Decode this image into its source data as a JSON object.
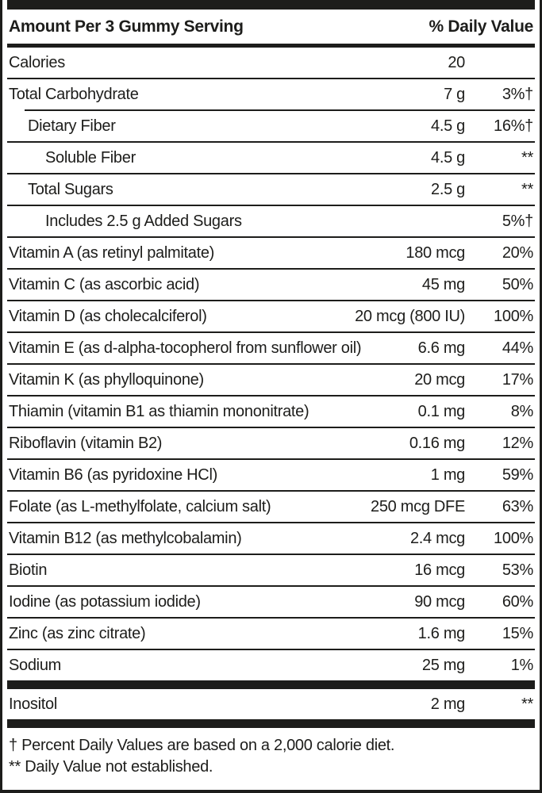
{
  "header": {
    "left": "Amount Per 3 Gummy Serving",
    "right": "% Daily Value"
  },
  "table": {
    "rows": [
      {
        "label": "Calories",
        "amount": "20",
        "pct": "",
        "indent": 0,
        "divider": "line"
      },
      {
        "label": "Total Carbohydrate",
        "amount": "7 g",
        "pct": "3%†",
        "indent": 0,
        "divider": "line-indent"
      },
      {
        "label": "Dietary Fiber",
        "amount": "4.5 g",
        "pct": "16%†",
        "indent": 1,
        "divider": "line"
      },
      {
        "label": "Soluble Fiber",
        "amount": "4.5 g",
        "pct": "**",
        "indent": 2,
        "divider": "line"
      },
      {
        "label": "Total Sugars",
        "amount": "2.5 g",
        "pct": "**",
        "indent": 1,
        "divider": "line"
      },
      {
        "label": "Includes 2.5 g Added Sugars",
        "amount": "",
        "pct": "5%†",
        "indent": 2,
        "divider": "line"
      },
      {
        "label": "Vitamin A (as retinyl palmitate)",
        "amount": "180 mcg",
        "pct": "20%",
        "indent": 0,
        "divider": "line"
      },
      {
        "label": "Vitamin C (as ascorbic acid)",
        "amount": "45 mg",
        "pct": "50%",
        "indent": 0,
        "divider": "line"
      },
      {
        "label": "Vitamin D (as cholecalciferol)",
        "amount": "20 mcg (800 IU)",
        "pct": "100%",
        "indent": 0,
        "divider": "line"
      },
      {
        "label": "Vitamin E (as d-alpha-tocopherol from sunflower oil)",
        "amount": "6.6 mg",
        "pct": "44%",
        "indent": 0,
        "divider": "line"
      },
      {
        "label": "Vitamin K (as phylloquinone)",
        "amount": "20 mcg",
        "pct": "17%",
        "indent": 0,
        "divider": "line"
      },
      {
        "label": "Thiamin (vitamin B1 as thiamin mononitrate)",
        "amount": "0.1 mg",
        "pct": "8%",
        "indent": 0,
        "divider": "line"
      },
      {
        "label": "Riboflavin (vitamin B2)",
        "amount": "0.16 mg",
        "pct": "12%",
        "indent": 0,
        "divider": "line"
      },
      {
        "label": "Vitamin B6 (as pyridoxine HCl)",
        "amount": "1 mg",
        "pct": "59%",
        "indent": 0,
        "divider": "line"
      },
      {
        "label": "Folate (as L-methylfolate, calcium salt)",
        "amount": "250 mcg DFE",
        "pct": "63%",
        "indent": 0,
        "divider": "line"
      },
      {
        "label": "Vitamin B12 (as methylcobalamin)",
        "amount": "2.4 mcg",
        "pct": "100%",
        "indent": 0,
        "divider": "line"
      },
      {
        "label": "Biotin",
        "amount": "16 mcg",
        "pct": "53%",
        "indent": 0,
        "divider": "line"
      },
      {
        "label": "Iodine (as potassium iodide)",
        "amount": "90 mcg",
        "pct": "60%",
        "indent": 0,
        "divider": "line"
      },
      {
        "label": "Zinc (as zinc citrate)",
        "amount": "1.6 mg",
        "pct": "15%",
        "indent": 0,
        "divider": "line"
      },
      {
        "label": "Sodium",
        "amount": "25 mg",
        "pct": "1%",
        "indent": 0,
        "divider": "bar"
      },
      {
        "label": "Inositol",
        "amount": "2 mg",
        "pct": "**",
        "indent": 0,
        "divider": "bar"
      }
    ]
  },
  "footnotes": {
    "daily_value": "† Percent Daily Values are based on a 2,000 calorie diet.",
    "not_established": "** Daily Value not established."
  },
  "colors": {
    "ink": "#1d1d1b",
    "background": "#ffffff"
  }
}
